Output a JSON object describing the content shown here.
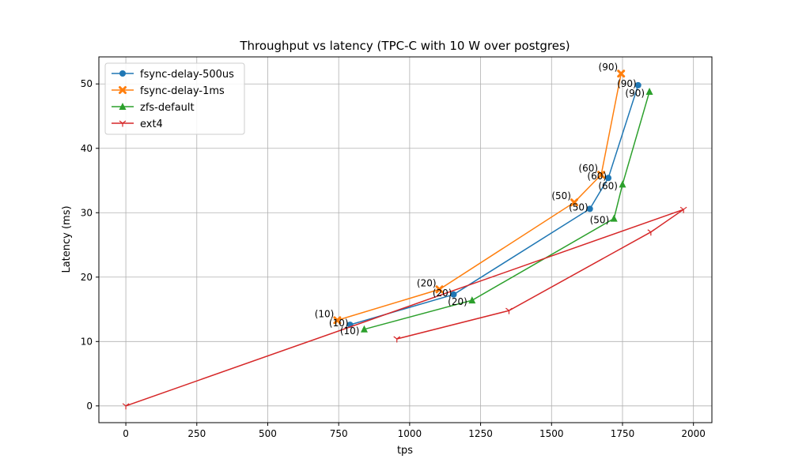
{
  "chart_data": {
    "type": "line",
    "title": "Throughput vs latency (TPC-C with 10 W over postgres)",
    "xlabel": "tps",
    "ylabel": "Latency (ms)",
    "xlim": [
      -95,
      2065
    ],
    "ylim": [
      -2.6,
      54.2
    ],
    "xticks": [
      0,
      250,
      500,
      750,
      1000,
      1250,
      1500,
      1750,
      2000
    ],
    "yticks": [
      0,
      10,
      20,
      30,
      40,
      50
    ],
    "grid": true,
    "legend": "top-left",
    "series": [
      {
        "name": "fsync-delay-500us",
        "color": "#1f77b4",
        "marker": "circle",
        "points": [
          {
            "x": 790,
            "y": 12.6,
            "label": "(10)"
          },
          {
            "x": 1155,
            "y": 17.3,
            "label": "(20)"
          },
          {
            "x": 1635,
            "y": 30.6,
            "label": "(50)"
          },
          {
            "x": 1700,
            "y": 35.4,
            "label": "(60)"
          },
          {
            "x": 1805,
            "y": 49.8,
            "label": "(90)"
          }
        ]
      },
      {
        "name": "fsync-delay-1ms",
        "color": "#ff7f0e",
        "marker": "x",
        "points": [
          {
            "x": 745,
            "y": 13.3,
            "label": "(10)"
          },
          {
            "x": 1105,
            "y": 18.1,
            "label": "(20)"
          },
          {
            "x": 1580,
            "y": 31.6,
            "label": "(50)"
          },
          {
            "x": 1675,
            "y": 35.9,
            "label": "(60)"
          },
          {
            "x": 1745,
            "y": 51.6,
            "label": "(90)"
          }
        ]
      },
      {
        "name": "zfs-default",
        "color": "#2ca02c",
        "marker": "triangle",
        "points": [
          {
            "x": 840,
            "y": 11.9,
            "label": "(10)"
          },
          {
            "x": 1220,
            "y": 16.4,
            "label": "(20)"
          },
          {
            "x": 1720,
            "y": 29.1,
            "label": "(50)"
          },
          {
            "x": 1750,
            "y": 34.4,
            "label": "(60)"
          },
          {
            "x": 1845,
            "y": 48.8,
            "label": "(90)"
          }
        ]
      },
      {
        "name": "ext4",
        "color": "#d62728",
        "marker": "tri",
        "points": [
          {
            "x": 955,
            "y": 10.4
          },
          {
            "x": 1350,
            "y": 14.8
          },
          {
            "x": 1850,
            "y": 27.0
          },
          {
            "x": 1965,
            "y": 30.5
          },
          {
            "x": 0,
            "y": 0.0
          }
        ]
      }
    ]
  }
}
